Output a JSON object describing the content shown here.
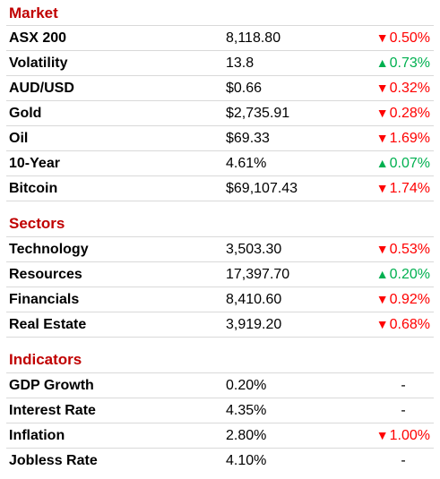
{
  "sections": [
    {
      "title": "Market",
      "rows": [
        {
          "name": "ASX 200",
          "value": "8,118.80",
          "arrow": "▼",
          "change": "0.50%",
          "dir": "down"
        },
        {
          "name": "Volatility",
          "value": "13.8",
          "arrow": "▲",
          "change": "0.73%",
          "dir": "up"
        },
        {
          "name": "AUD/USD",
          "value": "$0.66",
          "arrow": "▼",
          "change": "0.32%",
          "dir": "down"
        },
        {
          "name": "Gold",
          "value": "$2,735.91",
          "arrow": "▼",
          "change": "0.28%",
          "dir": "down"
        },
        {
          "name": "Oil",
          "value": "$69.33",
          "arrow": "▼",
          "change": "1.69%",
          "dir": "down"
        },
        {
          "name": "10-Year",
          "value": "4.61%",
          "arrow": "▲",
          "change": "0.07%",
          "dir": "up"
        },
        {
          "name": "Bitcoin",
          "value": "$69,107.43",
          "arrow": "▼",
          "change": "1.74%",
          "dir": "down"
        }
      ]
    },
    {
      "title": "Sectors",
      "rows": [
        {
          "name": "Technology",
          "value": "3,503.30",
          "arrow": "▼",
          "change": "0.53%",
          "dir": "down"
        },
        {
          "name": "Resources",
          "value": "17,397.70",
          "arrow": "▲",
          "change": "0.20%",
          "dir": "up"
        },
        {
          "name": "Financials",
          "value": "8,410.60",
          "arrow": "▼",
          "change": "0.92%",
          "dir": "down"
        },
        {
          "name": "Real Estate",
          "value": "3,919.20",
          "arrow": "▼",
          "change": "0.68%",
          "dir": "down"
        }
      ]
    },
    {
      "title": "Indicators",
      "rows": [
        {
          "name": "GDP Growth",
          "value": "0.20%",
          "arrow": "",
          "change": "-",
          "dir": "neutral"
        },
        {
          "name": "Interest Rate",
          "value": "4.35%",
          "arrow": "",
          "change": "-",
          "dir": "neutral"
        },
        {
          "name": "Inflation",
          "value": "2.80%",
          "arrow": "▼",
          "change": "1.00%",
          "dir": "down"
        },
        {
          "name": "Jobless Rate",
          "value": "4.10%",
          "arrow": "",
          "change": "-",
          "dir": "neutral"
        }
      ]
    }
  ],
  "colors": {
    "heading": "#c00000",
    "down": "#ff0000",
    "up": "#00b050"
  }
}
